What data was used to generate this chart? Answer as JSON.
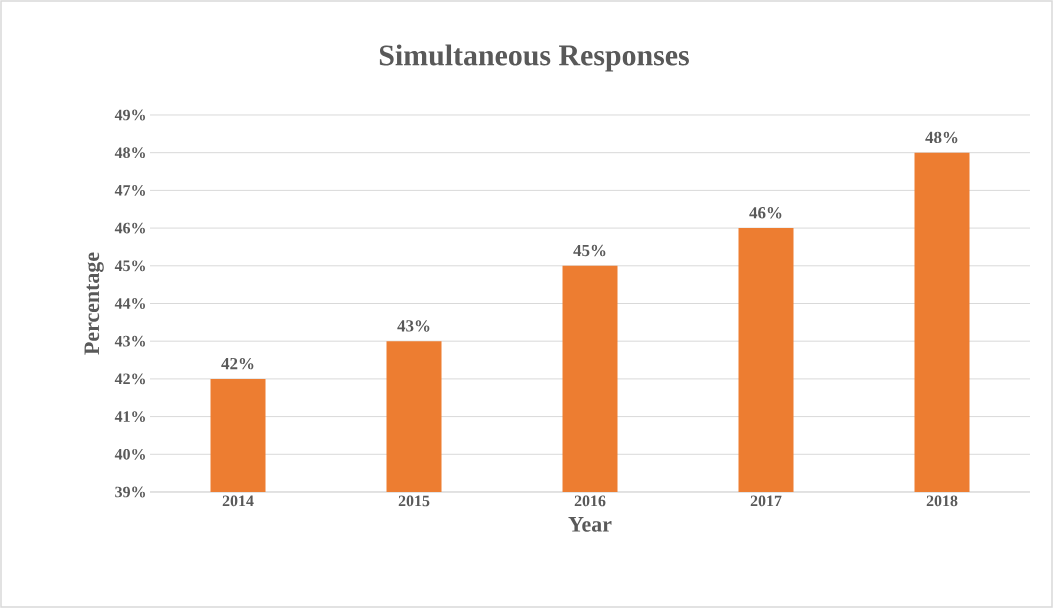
{
  "chart_data": {
    "type": "bar",
    "title": "Simultaneous Responses",
    "xlabel": "Year",
    "ylabel": "Percentage",
    "categories": [
      "2014",
      "2015",
      "2016",
      "2017",
      "2018"
    ],
    "values": [
      42,
      43,
      45,
      46,
      48
    ],
    "value_labels": [
      "42%",
      "43%",
      "45%",
      "46%",
      "48%"
    ],
    "color": "#ed7d31",
    "ylim": [
      39,
      49
    ],
    "yticks": [
      {
        "value": 39,
        "label": "39%"
      },
      {
        "value": 40,
        "label": "40%"
      },
      {
        "value": 41,
        "label": "41%"
      },
      {
        "value": 42,
        "label": "42%"
      },
      {
        "value": 43,
        "label": "43%"
      },
      {
        "value": 44,
        "label": "44%"
      },
      {
        "value": 45,
        "label": "45%"
      },
      {
        "value": 46,
        "label": "46%"
      },
      {
        "value": 47,
        "label": "47%"
      },
      {
        "value": 48,
        "label": "48%"
      },
      {
        "value": 49,
        "label": "49%"
      }
    ],
    "grid": "y"
  }
}
